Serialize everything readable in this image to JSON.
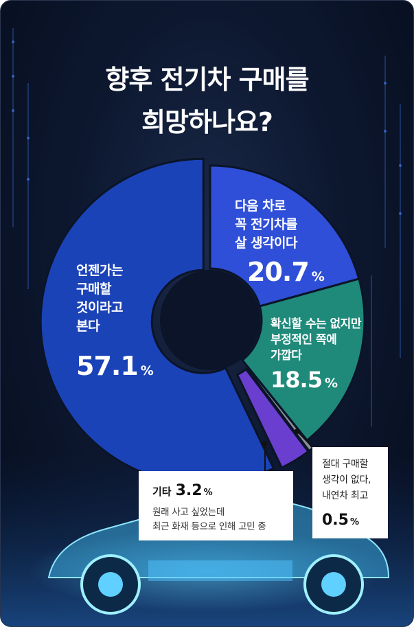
{
  "title": [
    "향후 전기차 구매를",
    "희망하나요?"
  ],
  "colors": {
    "s1": "#2f4fd8",
    "s2": "#1f8a7a",
    "s3": "#8a8f98",
    "s4": "#6a3fcf",
    "s5": "#1b43b8",
    "bg": "#0b1428"
  },
  "chart_data": {
    "type": "pie",
    "title": "향후 전기차 구매를 희망하나요?",
    "slices": [
      {
        "label": "다음 차로 꼭 전기차를 살 생각이다",
        "lines": [
          "다음 차로",
          "꼭 전기차를",
          "살 생각이다"
        ],
        "value": 20.7,
        "display": "20.7"
      },
      {
        "label": "확신할 수는 없지만 부정적인 쪽에 가깝다",
        "lines": [
          "확신할 수는 없지만",
          "부정적인 쪽에",
          "가깝다"
        ],
        "value": 18.5,
        "display": "18.5"
      },
      {
        "label": "절대 구매할 생각이 없다, 내연차 최고",
        "lines": [
          "절대 구매할",
          "생각이 없다,",
          "내연차 최고"
        ],
        "value": 0.5,
        "display": "0.5"
      },
      {
        "label": "기타",
        "lines": [
          "기타"
        ],
        "value": 3.2,
        "display": "3.2",
        "note": [
          "원래 사고 싶었는데",
          "최근 화재 등으로 인해 고민 중"
        ]
      },
      {
        "label": "언젠가는 구매할 것이라고 본다",
        "lines": [
          "언젠가는",
          "구매할",
          "것이라고",
          "본다"
        ],
        "value": 57.1,
        "display": "57.1"
      }
    ],
    "unit": "%"
  }
}
